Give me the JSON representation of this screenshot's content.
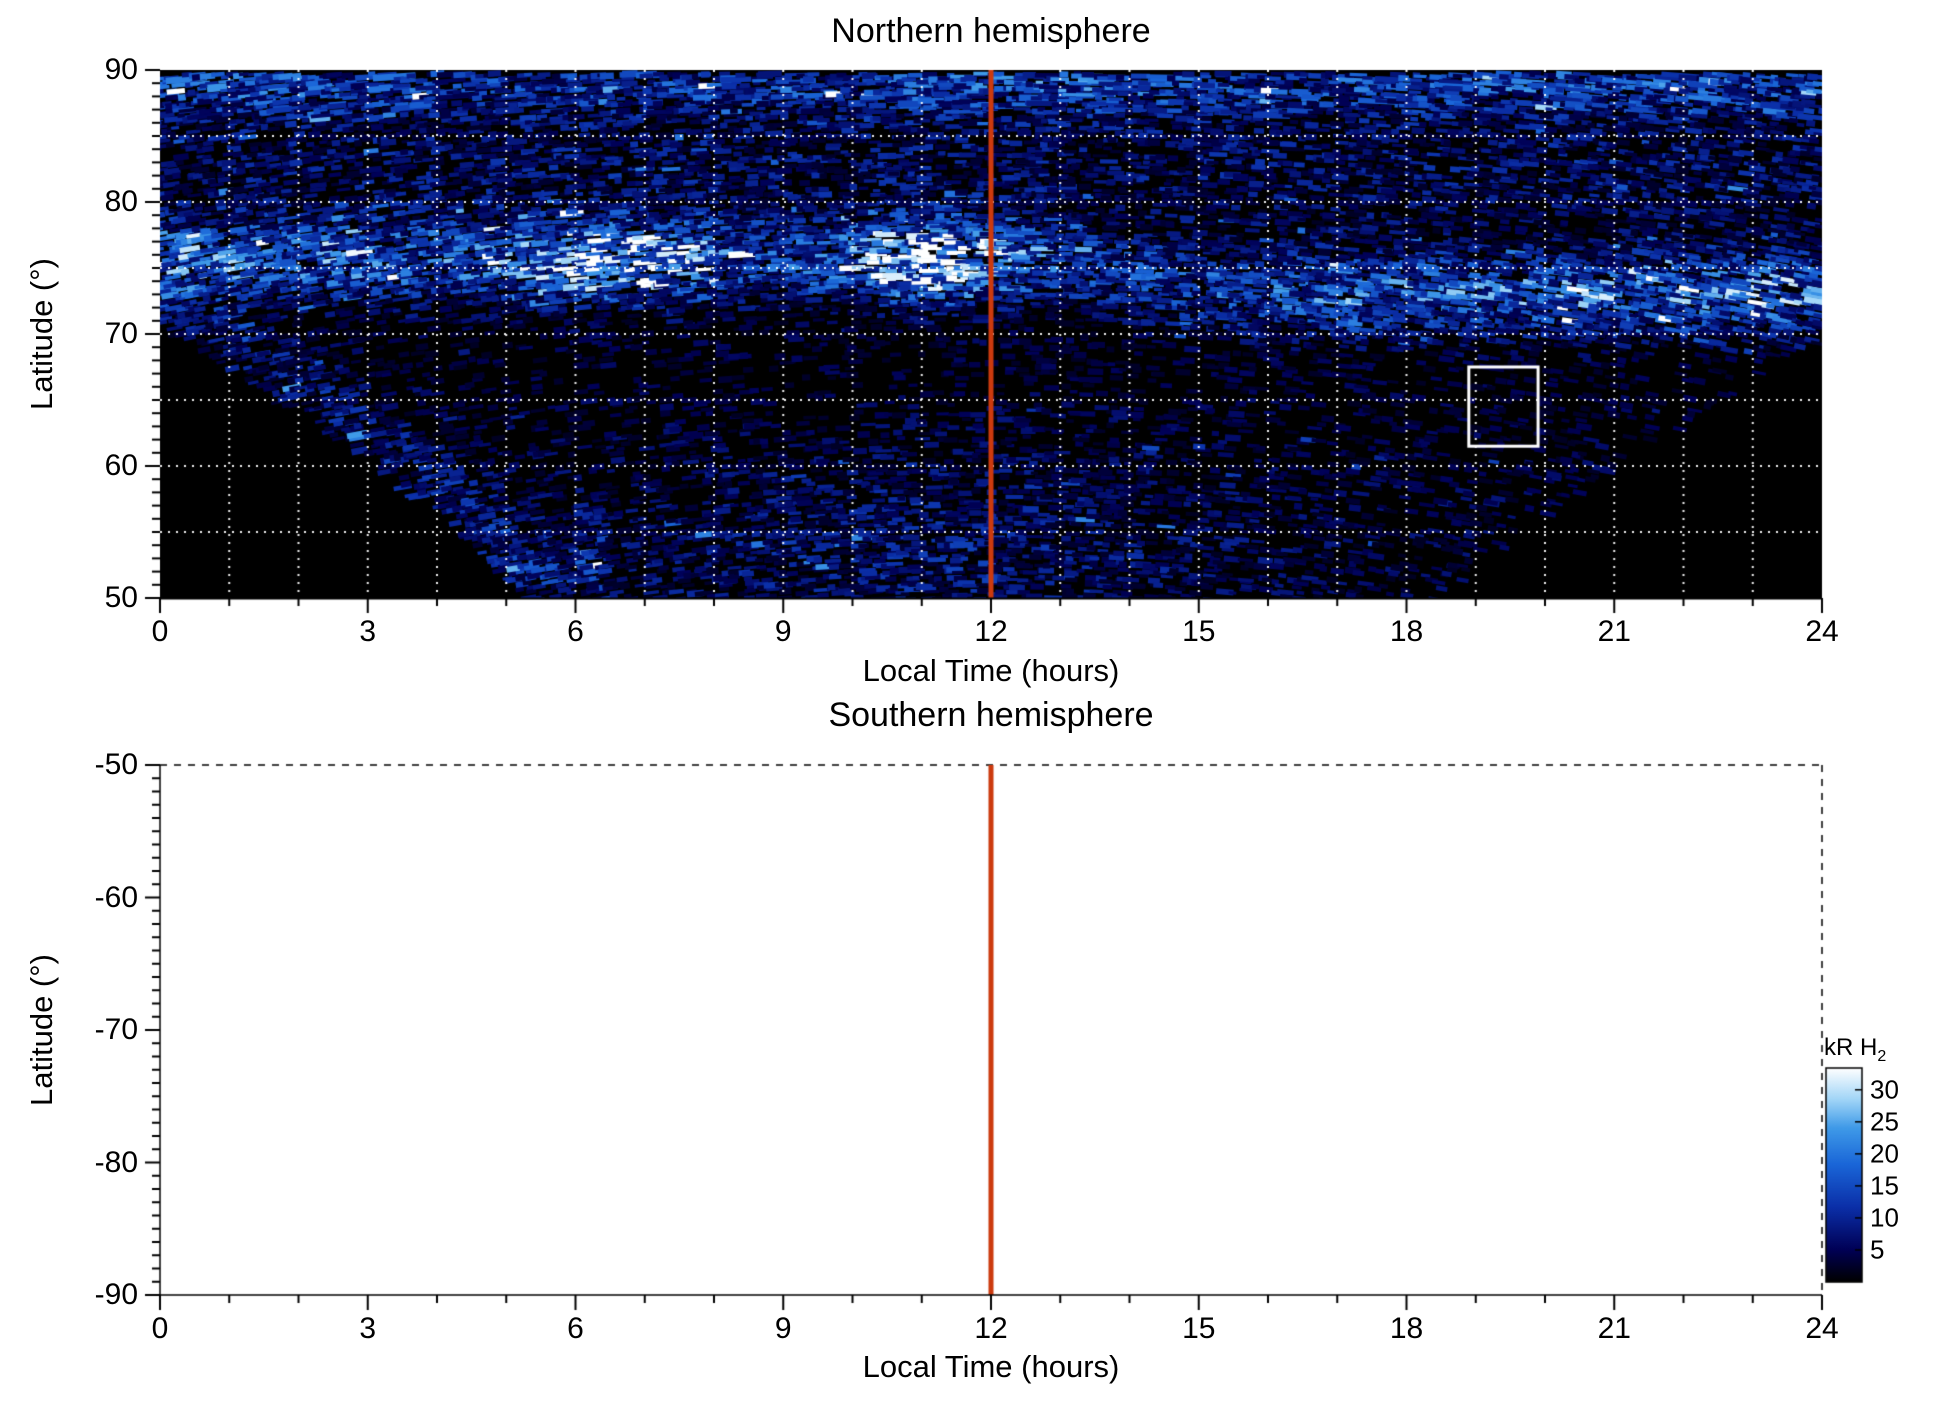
{
  "north": {
    "title": "Northern hemisphere",
    "xlabel": "Local Time (hours)",
    "ylabel": "Latitude (°)",
    "x_tick_labels": [
      "0",
      "3",
      "6",
      "9",
      "12",
      "15",
      "18",
      "21",
      "24"
    ],
    "y_tick_labels": [
      "90",
      "80",
      "70",
      "60",
      "50"
    ]
  },
  "south": {
    "title": "Southern hemisphere",
    "xlabel": "Local Time (hours)",
    "ylabel": "Latitude (°)",
    "x_tick_labels": [
      "0",
      "3",
      "6",
      "9",
      "12",
      "15",
      "18",
      "21",
      "24"
    ],
    "y_tick_labels": [
      "-50",
      "-60",
      "-70",
      "-80",
      "-90"
    ]
  },
  "colorbar": {
    "label_main": "kR H",
    "label_sub": "2",
    "tick_labels": [
      "30",
      "25",
      "20",
      "15",
      "10",
      "5"
    ],
    "tick_values": [
      30,
      25,
      20,
      15,
      10,
      5
    ],
    "value_max": 33.4,
    "stops": [
      [
        0,
        "#000000"
      ],
      [
        0.15,
        "#000055"
      ],
      [
        0.35,
        "#0b2fa8"
      ],
      [
        0.55,
        "#1a66d8"
      ],
      [
        0.72,
        "#3f9ae8"
      ],
      [
        0.85,
        "#9fd4f7"
      ],
      [
        1,
        "#ffffff"
      ]
    ]
  },
  "chart_data": [
    {
      "type": "heatmap",
      "title": "Northern hemisphere",
      "xlabel": "Local Time (hours)",
      "ylabel": "Latitude (°)",
      "x_range_hours": [
        0,
        24
      ],
      "y_range_deg": [
        50,
        90
      ],
      "x_major_ticks": [
        0,
        3,
        6,
        9,
        12,
        15,
        18,
        21,
        24
      ],
      "x_minor_step_hours": 1,
      "y_major_ticks": [
        50,
        60,
        70,
        80,
        90
      ],
      "y_minor_step_deg": 1,
      "grid": {
        "x_step_hours": 1,
        "y_step_deg": 5,
        "style": "white dotted"
      },
      "units": "kR H2",
      "value_range_kR": [
        0,
        33.4
      ],
      "noon_marker_hour": 12,
      "noon_marker_color": "#cc3a0e",
      "highlight_box": {
        "hours": [
          18.9,
          19.9
        ],
        "lat_deg": [
          61.5,
          67.5
        ],
        "color": "#ffffff"
      },
      "no_data_boundary": {
        "dawn": {
          "end_hour": 5.2,
          "lat_at_0h": 70.5,
          "exp": 0.8
        },
        "dusk": {
          "start_hour": 18.6,
          "lat_at_24h": 69.5,
          "exp": 0.85
        }
      },
      "features": [
        {
          "name": "main-auroral-band",
          "center_lat_deg": 75.6,
          "evening_center_lat_deg": 73.0,
          "sigma_deg": 2.0,
          "base_kR": 9,
          "peaks": [
            {
              "hour": 6.7,
              "kR": 21,
              "sigma_h": 0.9
            },
            {
              "hour": 11.2,
              "kR": 21,
              "sigma_h": 0.9
            },
            {
              "hour": 0.3,
              "kR": 7,
              "sigma_h": 1.2
            },
            {
              "hour": 3.5,
              "kR": 5,
              "sigma_h": 1.2
            },
            {
              "hour": 17.3,
              "kR": 6,
              "sigma_h": 1.4
            },
            {
              "hour": 20.8,
              "kR": 7,
              "sigma_h": 1.2
            },
            {
              "hour": 23.6,
              "kR": 9,
              "sigma_h": 0.9
            }
          ]
        },
        {
          "name": "polar-edge-band",
          "center_lat_deg": 88.8,
          "sigma_deg": 1.4,
          "base_kR": 7,
          "peaks": [
            {
              "hour": 12.5,
              "kR": 5,
              "sigma_h": 2.5
            },
            {
              "hour": 1.5,
              "kR": 4,
              "sigma_h": 1.5
            },
            {
              "hour": 21.0,
              "kR": 4,
              "sigma_h": 2.0
            }
          ]
        },
        {
          "name": "polar-diffuse",
          "center_lat_deg": 83,
          "sigma_deg": 4,
          "base_kR": 4.2,
          "peaks": []
        },
        {
          "name": "diffuse-background",
          "base_kR": 4.0,
          "peaks": []
        },
        {
          "name": "low-latitude-diffuse",
          "center_lat_deg": 53,
          "sigma_deg": 6,
          "base_kR": 1.5,
          "max_lat_deg": 66,
          "peaks": [
            {
              "hour": 9.0,
              "kR": 2.5,
              "sigma_h": 2.5
            },
            {
              "hour": 12.5,
              "kR": 2.5,
              "sigma_h": 2.0
            }
          ]
        },
        {
          "name": "dawn-boundary-arcs",
          "hours": [
            0,
            6.5
          ],
          "offset_deg": 2.5,
          "sigma_deg": 2.2,
          "kR": 5
        }
      ]
    },
    {
      "type": "heatmap",
      "title": "Southern hemisphere",
      "xlabel": "Local Time (hours)",
      "ylabel": "Latitude (°)",
      "x_range_hours": [
        0,
        24
      ],
      "y_range_deg": [
        -90,
        -50
      ],
      "x_major_ticks": [
        0,
        3,
        6,
        9,
        12,
        15,
        18,
        21,
        24
      ],
      "y_major_ticks": [
        -50,
        -60,
        -70,
        -80,
        -90
      ],
      "noon_marker_hour": 12,
      "noon_marker_color": "#cc3a0e",
      "values": "no data (blank panel)",
      "border_style": "dashed top and right edges"
    }
  ]
}
